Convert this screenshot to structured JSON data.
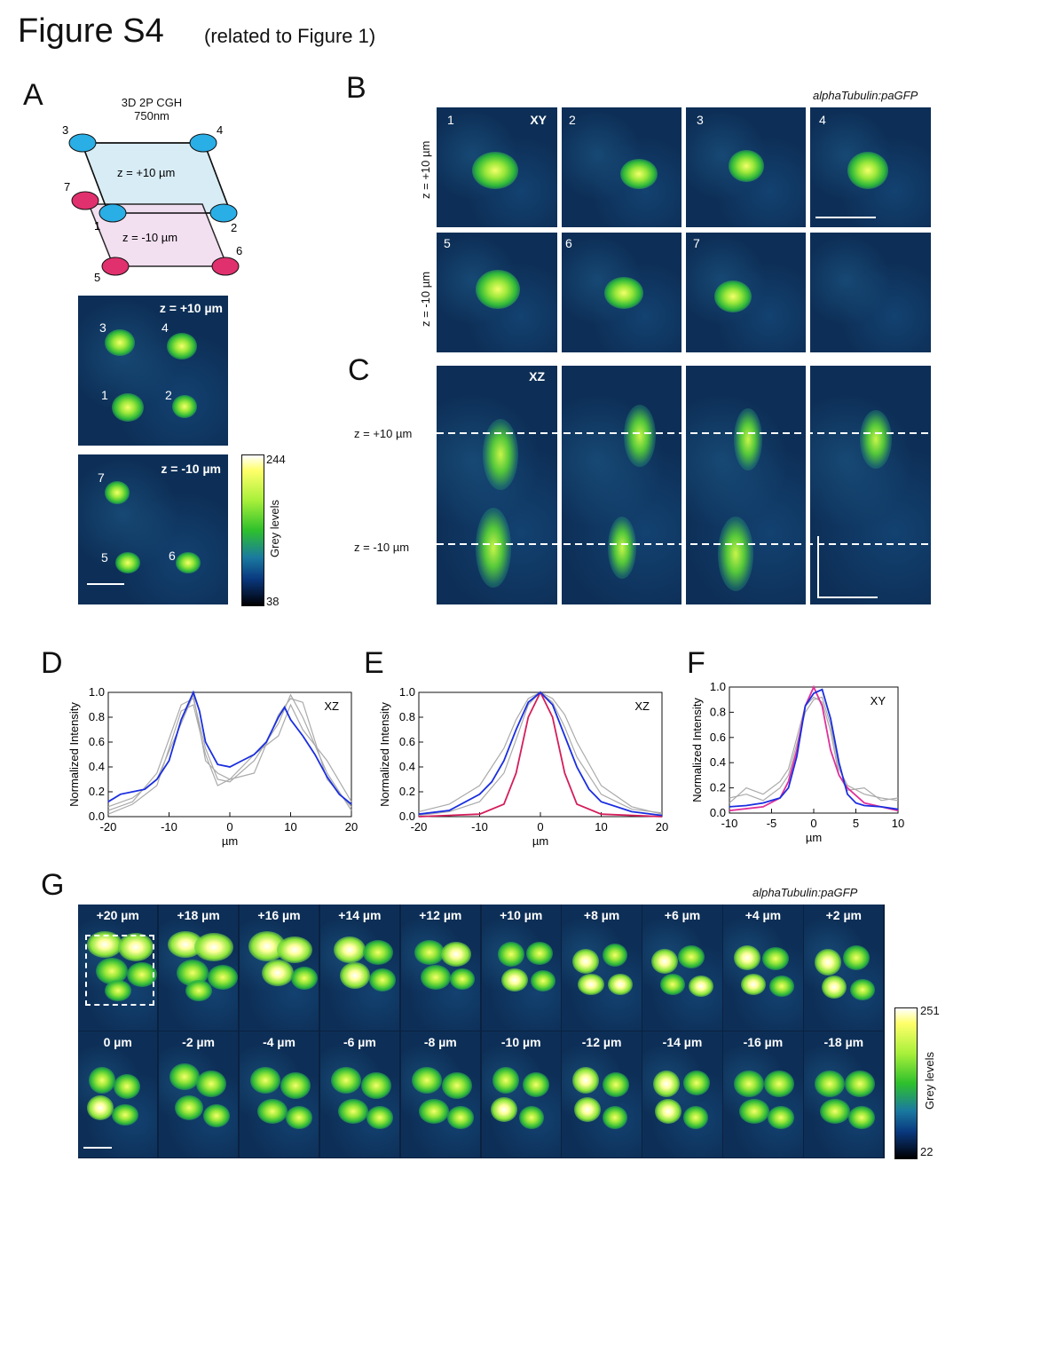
{
  "header": {
    "title": "Figure S4",
    "subtitle": "(related to Figure 1)"
  },
  "panel_letters": {
    "a": "A",
    "b": "B",
    "c": "C",
    "d": "D",
    "e": "E",
    "f": "F",
    "g": "G"
  },
  "panel_a": {
    "method_line1": "3D 2P CGH",
    "method_line2": "750nm",
    "plane_upper": "z =  +10 µm",
    "plane_lower": "z =  -10 µm",
    "spot_numbers": [
      "1",
      "2",
      "3",
      "4",
      "5",
      "6",
      "7"
    ],
    "spot_colors": {
      "upper": "#29aee6",
      "lower": "#e0306e"
    },
    "image_upper_label": "z =  +10 µm",
    "image_lower_label": "z =  -10 µm",
    "colorbar": {
      "max": "244",
      "min": "38",
      "label": "Grey levels"
    }
  },
  "panel_b": {
    "genotype": "alphaTubulin:paGFP",
    "view": "XY",
    "row_labels": [
      "z =  +10 µm",
      "z =  -10 µm"
    ],
    "tiles": [
      "1",
      "2",
      "3",
      "4",
      "5",
      "6",
      "7",
      ""
    ]
  },
  "panel_c": {
    "view": "XZ",
    "line_labels": [
      "z =  +10 µm",
      "z =  -10 µm"
    ]
  },
  "plots": {
    "ylabel": "Normalized Intensity",
    "xlabel": "µm",
    "d_tag": "XZ",
    "e_tag": "XZ",
    "f_tag": "XY",
    "d_xticks": [
      "-20",
      "-10",
      "0",
      "10",
      "20"
    ],
    "e_xticks": [
      "-20",
      "-10",
      "0",
      "10",
      "20"
    ],
    "f_xticks": [
      "-10",
      "-5",
      "0",
      "5",
      "10"
    ],
    "yticks": [
      "0.0",
      "0.2",
      "0.4",
      "0.6",
      "0.8",
      "1.0"
    ]
  },
  "panel_g": {
    "genotype": "alphaTubulin:paGFP",
    "row1": [
      "+20 µm",
      "+18 µm",
      "+16 µm",
      "+14 µm",
      "+12 µm",
      "+10 µm",
      "+8 µm",
      "+6 µm",
      "+4 µm",
      "+2 µm"
    ],
    "row2": [
      "0 µm",
      "-2 µm",
      "-4 µm",
      "-6 µm",
      "-8 µm",
      "-10 µm",
      "-12 µm",
      "-14 µm",
      "-16 µm",
      "-18 µm"
    ],
    "colorbar": {
      "max": "251",
      "min": "22",
      "label": "Grey levels"
    }
  },
  "chart_data": [
    {
      "type": "line",
      "title": "",
      "xlabel": "µm",
      "ylabel": "Normalized Intensity",
      "xlim": [
        -20,
        20
      ],
      "ylim": [
        0,
        1
      ],
      "annotation": "XZ",
      "series": [
        {
          "color": "#1a2ee0",
          "x": [
            -20,
            -18,
            -16,
            -14,
            -12,
            -10,
            -8,
            -6,
            -5,
            -4,
            -2,
            0,
            2,
            4,
            6,
            8,
            9,
            10,
            12,
            14,
            16,
            18,
            20
          ],
          "y": [
            0.12,
            0.18,
            0.2,
            0.22,
            0.3,
            0.45,
            0.78,
            1.0,
            0.85,
            0.6,
            0.42,
            0.4,
            0.45,
            0.5,
            0.6,
            0.8,
            0.88,
            0.78,
            0.65,
            0.5,
            0.32,
            0.18,
            0.1
          ]
        },
        {
          "color": "#aaaaaa",
          "x": [
            -20,
            -16,
            -12,
            -8,
            -6,
            -4,
            -2,
            0,
            4,
            8,
            10,
            12,
            16,
            20
          ],
          "y": [
            0.05,
            0.12,
            0.35,
            0.9,
            0.95,
            0.55,
            0.3,
            0.28,
            0.45,
            0.75,
            0.98,
            0.8,
            0.35,
            0.05
          ]
        },
        {
          "color": "#aaaaaa",
          "x": [
            -20,
            -16,
            -12,
            -8,
            -6,
            -4,
            -2,
            0,
            4,
            8,
            10,
            12,
            16,
            20
          ],
          "y": [
            0.02,
            0.1,
            0.25,
            0.85,
            0.9,
            0.5,
            0.25,
            0.3,
            0.35,
            0.82,
            0.95,
            0.92,
            0.3,
            0.08
          ]
        },
        {
          "color": "#aaaaaa",
          "x": [
            -20,
            -16,
            -12,
            -8,
            -6,
            -4,
            -2,
            0,
            4,
            8,
            10,
            12,
            16,
            20
          ],
          "y": [
            0.08,
            0.15,
            0.3,
            0.75,
            0.98,
            0.45,
            0.35,
            0.3,
            0.5,
            0.65,
            0.9,
            0.7,
            0.45,
            0.12
          ]
        }
      ]
    },
    {
      "type": "line",
      "title": "",
      "xlabel": "µm",
      "ylabel": "Normalized Intensity",
      "xlim": [
        -20,
        20
      ],
      "ylim": [
        0,
        1
      ],
      "annotation": "XZ",
      "series": [
        {
          "color": "#1a2ee0",
          "x": [
            -20,
            -15,
            -10,
            -8,
            -6,
            -4,
            -2,
            0,
            2,
            4,
            6,
            8,
            10,
            15,
            20
          ],
          "y": [
            0.02,
            0.05,
            0.18,
            0.28,
            0.45,
            0.7,
            0.92,
            1.0,
            0.9,
            0.65,
            0.4,
            0.22,
            0.12,
            0.04,
            0.01
          ]
        },
        {
          "color": "#d41e5a",
          "x": [
            -20,
            -10,
            -6,
            -4,
            -2,
            0,
            2,
            4,
            6,
            10,
            20
          ],
          "y": [
            0.0,
            0.02,
            0.1,
            0.35,
            0.8,
            1.0,
            0.8,
            0.35,
            0.1,
            0.02,
            0.0
          ]
        },
        {
          "color": "#aaaaaa",
          "x": [
            -20,
            -15,
            -10,
            -6,
            -4,
            -2,
            0,
            2,
            4,
            6,
            10,
            15,
            20
          ],
          "y": [
            0.04,
            0.1,
            0.25,
            0.55,
            0.78,
            0.95,
            1.0,
            0.92,
            0.72,
            0.48,
            0.18,
            0.06,
            0.03
          ]
        },
        {
          "color": "#aaaaaa",
          "x": [
            -20,
            -15,
            -10,
            -6,
            -4,
            -2,
            0,
            2,
            4,
            6,
            10,
            15,
            20
          ],
          "y": [
            0.01,
            0.04,
            0.12,
            0.35,
            0.62,
            0.9,
            1.0,
            0.95,
            0.82,
            0.6,
            0.25,
            0.08,
            0.02
          ]
        }
      ]
    },
    {
      "type": "line",
      "title": "",
      "xlabel": "µm",
      "ylabel": "Normalized Intensity",
      "xlim": [
        -10,
        10
      ],
      "ylim": [
        0,
        1
      ],
      "annotation": "XY",
      "series": [
        {
          "color": "#1a2ee0",
          "x": [
            -10,
            -8,
            -6,
            -5,
            -4,
            -3,
            -2,
            -1,
            0,
            1,
            2,
            3,
            4,
            5,
            6,
            8,
            10
          ],
          "y": [
            0.05,
            0.06,
            0.08,
            0.1,
            0.12,
            0.2,
            0.45,
            0.85,
            0.95,
            0.98,
            0.75,
            0.4,
            0.15,
            0.08,
            0.06,
            0.05,
            0.03
          ]
        },
        {
          "color": "#e0309a",
          "x": [
            -10,
            -6,
            -4,
            -3,
            -2,
            -1,
            0,
            1,
            2,
            3,
            4,
            6,
            10
          ],
          "y": [
            0.02,
            0.05,
            0.12,
            0.25,
            0.5,
            0.85,
            1.0,
            0.85,
            0.5,
            0.3,
            0.2,
            0.08,
            0.02
          ]
        },
        {
          "color": "#aaaaaa",
          "x": [
            -10,
            -8,
            -6,
            -4,
            -3,
            -2,
            -1,
            0,
            1,
            2,
            3,
            4,
            6,
            8,
            10
          ],
          "y": [
            0.12,
            0.15,
            0.1,
            0.2,
            0.3,
            0.55,
            0.8,
            0.9,
            0.92,
            0.7,
            0.35,
            0.22,
            0.15,
            0.12,
            0.1
          ]
        },
        {
          "color": "#aaaaaa",
          "x": [
            -10,
            -8,
            -6,
            -4,
            -3,
            -2,
            -1,
            0,
            1,
            2,
            3,
            4,
            6,
            8,
            10
          ],
          "y": [
            0.08,
            0.2,
            0.15,
            0.25,
            0.35,
            0.6,
            0.85,
            0.92,
            0.88,
            0.65,
            0.3,
            0.18,
            0.2,
            0.1,
            0.12
          ]
        }
      ]
    }
  ]
}
